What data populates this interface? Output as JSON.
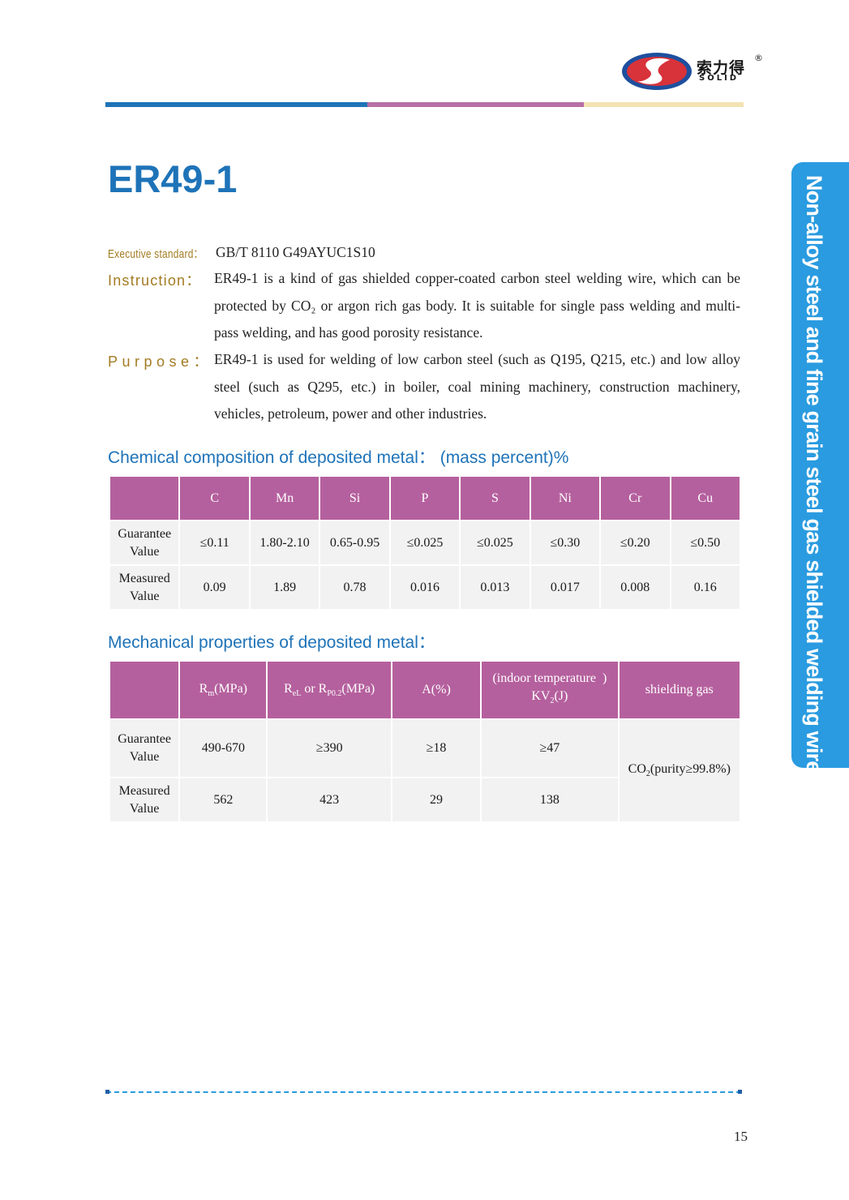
{
  "brand": {
    "name": "索力得",
    "name_en": "SOLID",
    "registered": "®"
  },
  "colors": {
    "accent_blue": "#1e73b8",
    "bar_blue": "#1e73b8",
    "bar_pink": "#b86fa7",
    "bar_cream": "#f3e3b3",
    "table_header": "#b5609e",
    "side_tab": "#2a9be0",
    "label_gold": "#a37b22"
  },
  "product": {
    "title": "ER49-1"
  },
  "info": {
    "standard_label": "Executive standard：",
    "standard_value": "GB/T  8110 G49AYUC1S10",
    "instruction_label": "Instruction：",
    "instruction_text": "ER49-1 is a kind of gas shielded copper-coated carbon steel welding wire, which can be protected by CO₂ or argon rich gas body. It is suitable for single pass welding and multi-pass welding, and has good porosity resistance.",
    "purpose_label": "Purpose：",
    "purpose_text": "ER49-1 is used for welding of low carbon steel (such as Q195, Q215, etc.) and low alloy steel (such as Q295, etc.) in boiler, coal mining machinery, construction machinery, vehicles, petroleum, power and other industries."
  },
  "chemical": {
    "title": "Chemical composition of deposited metal：  (mass percent)%",
    "headers": [
      "",
      "C",
      "Mn",
      "Si",
      "P",
      "S",
      "Ni",
      "Cr",
      "Cu"
    ],
    "rows": [
      {
        "label_1": "Guarantee",
        "label_2": "Value",
        "values": [
          "≤0.11",
          "1.80-2.10",
          "0.65-0.95",
          "≤0.025",
          "≤0.025",
          "≤0.30",
          "≤0.20",
          "≤0.50"
        ]
      },
      {
        "label_1": "Measured",
        "label_2": "Value",
        "values": [
          "0.09",
          "1.89",
          "0.78",
          "0.016",
          "0.013",
          "0.017",
          "0.008",
          "0.16"
        ]
      }
    ]
  },
  "mechanical": {
    "title": "Mechanical properties of deposited metal：",
    "headers": {
      "rm": "R",
      "rm_sub": "m",
      "rm_unit": "(MPa)",
      "rel": "R",
      "rel_sub": "eL",
      "rel_or": " or R",
      "rp_sub": "P0.2",
      "rel_unit": "(MPa)",
      "a": "A(%)",
      "kv_line1": "(indoor temperature  )",
      "kv_line2": "KV",
      "kv_sub": "2",
      "kv_unit": "(J)",
      "gas": "shielding gas"
    },
    "rows": [
      {
        "label_1": "Guarantee",
        "label_2": "Value",
        "rm": "490-670",
        "rel": "≥390",
        "a": "≥18",
        "kv": "≥47"
      },
      {
        "label_1": "Measured",
        "label_2": "Value",
        "rm": "562",
        "rel": "423",
        "a": "29",
        "kv": "138"
      }
    ],
    "gas_main": "CO",
    "gas_sub": "2",
    "gas_rest": "(purity≥99.8%)"
  },
  "side_tab": "Non-alloy steel and fine grain steel gas shielded welding wire",
  "page_number": "15"
}
